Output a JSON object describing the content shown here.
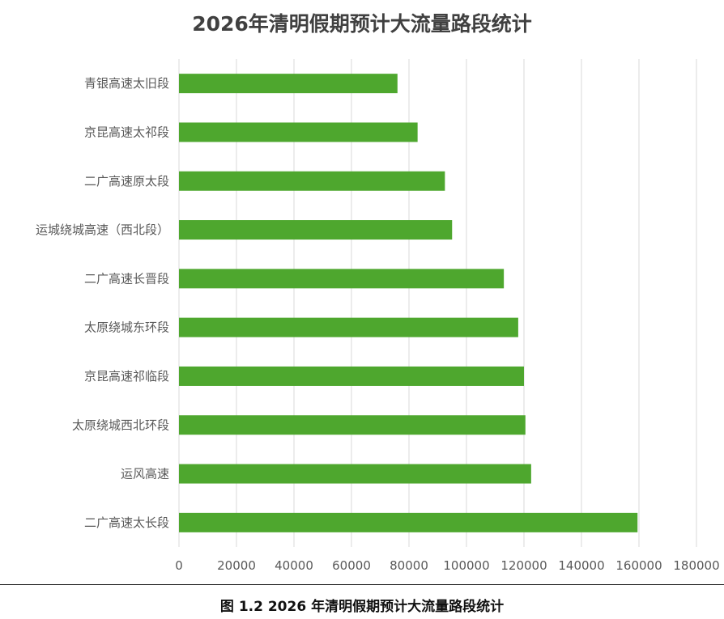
{
  "chart_data": {
    "type": "bar",
    "orientation": "horizontal",
    "title": "2026年清明假期预计大流量路段统计",
    "caption": "图 1.2 2026 年清明假期预计大流量路段统计",
    "categories": [
      "青银高速太旧段",
      "京昆高速太祁段",
      "二广高速原太段",
      "运城绕城高速（西北段）",
      "二广高速长晋段",
      "太原绕城东环段",
      "京昆高速祁临段",
      "太原绕城西北环段",
      "运风高速",
      "二广高速太长段"
    ],
    "values": [
      76000,
      83000,
      92500,
      95000,
      113000,
      118000,
      120000,
      120500,
      122500,
      159500
    ],
    "xlim": [
      0,
      180000
    ],
    "xticks": [
      "0",
      "20000",
      "40000",
      "60000",
      "80000",
      "100000",
      "120000",
      "140000",
      "160000",
      "180000"
    ],
    "grid": true,
    "bar_color": "#4ea72e"
  }
}
